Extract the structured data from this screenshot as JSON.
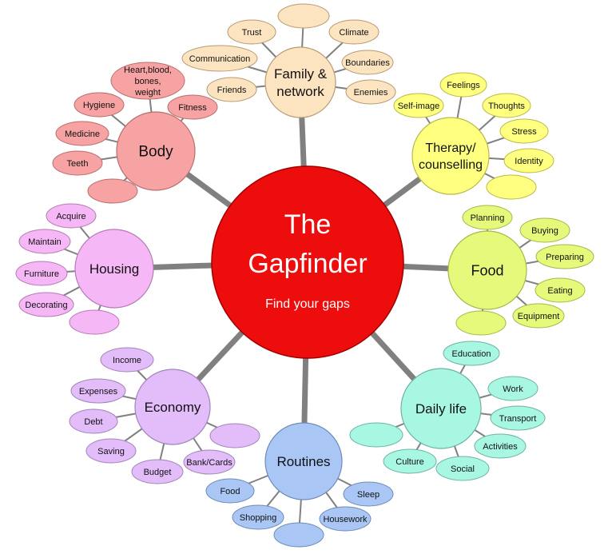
{
  "center": {
    "title_line1": "The",
    "title_line2": "Gapfinder",
    "subtitle": "Find your gaps",
    "color": "#ee0d0d",
    "text_color": "#ffffff"
  },
  "spoke_color": "#808080",
  "hubs": [
    {
      "id": "family",
      "label_lines": [
        "Family &",
        "network"
      ],
      "fill": "#fde4c0",
      "stroke": "#b79a74",
      "leaves": [
        "Trust",
        "",
        "Climate",
        "Boundaries",
        "Enemies",
        "Friends",
        "Communication"
      ]
    },
    {
      "id": "therapy",
      "label_lines": [
        "Therapy/",
        "counselling"
      ],
      "fill": "#ffff80",
      "stroke": "#b9b94a",
      "leaves": [
        "Self-image",
        "Feelings",
        "Thoughts",
        "Stress",
        "Identity",
        ""
      ]
    },
    {
      "id": "food",
      "label_lines": [
        "Food"
      ],
      "fill": "#e6f97a",
      "stroke": "#a5b84c",
      "leaves": [
        "Planning",
        "Buying",
        "Preparing",
        "Eating",
        "Equipment",
        ""
      ]
    },
    {
      "id": "daily-life",
      "label_lines": [
        "Daily life"
      ],
      "fill": "#a8f7e2",
      "stroke": "#6fb3a2",
      "leaves": [
        "Education",
        "Work",
        "Transport",
        "Activities",
        "Social",
        "Culture",
        ""
      ]
    },
    {
      "id": "routines",
      "label_lines": [
        "Routines"
      ],
      "fill": "#a9c6f5",
      "stroke": "#6e8bb8",
      "leaves": [
        "Food",
        "Shopping",
        "",
        "Housework",
        "Sleep"
      ]
    },
    {
      "id": "economy",
      "label_lines": [
        "Economy"
      ],
      "fill": "#e3bcfa",
      "stroke": "#a384b8",
      "leaves": [
        "Income",
        "Expenses",
        "Debt",
        "Saving",
        "Budget",
        "Bank/Cards",
        ""
      ]
    },
    {
      "id": "housing",
      "label_lines": [
        "Housing"
      ],
      "fill": "#f6b7f6",
      "stroke": "#b47cb4",
      "leaves": [
        "Acquire",
        "Maintain",
        "Furniture",
        "Decorating",
        ""
      ]
    },
    {
      "id": "body",
      "label_lines": [
        "Body"
      ],
      "fill": "#f7a3a3",
      "stroke": "#b86e6e",
      "leaves": [
        "Heart,blood, bones, weight",
        "Fitness",
        "Hygiene",
        "Medicine",
        "Teeth",
        ""
      ]
    }
  ]
}
